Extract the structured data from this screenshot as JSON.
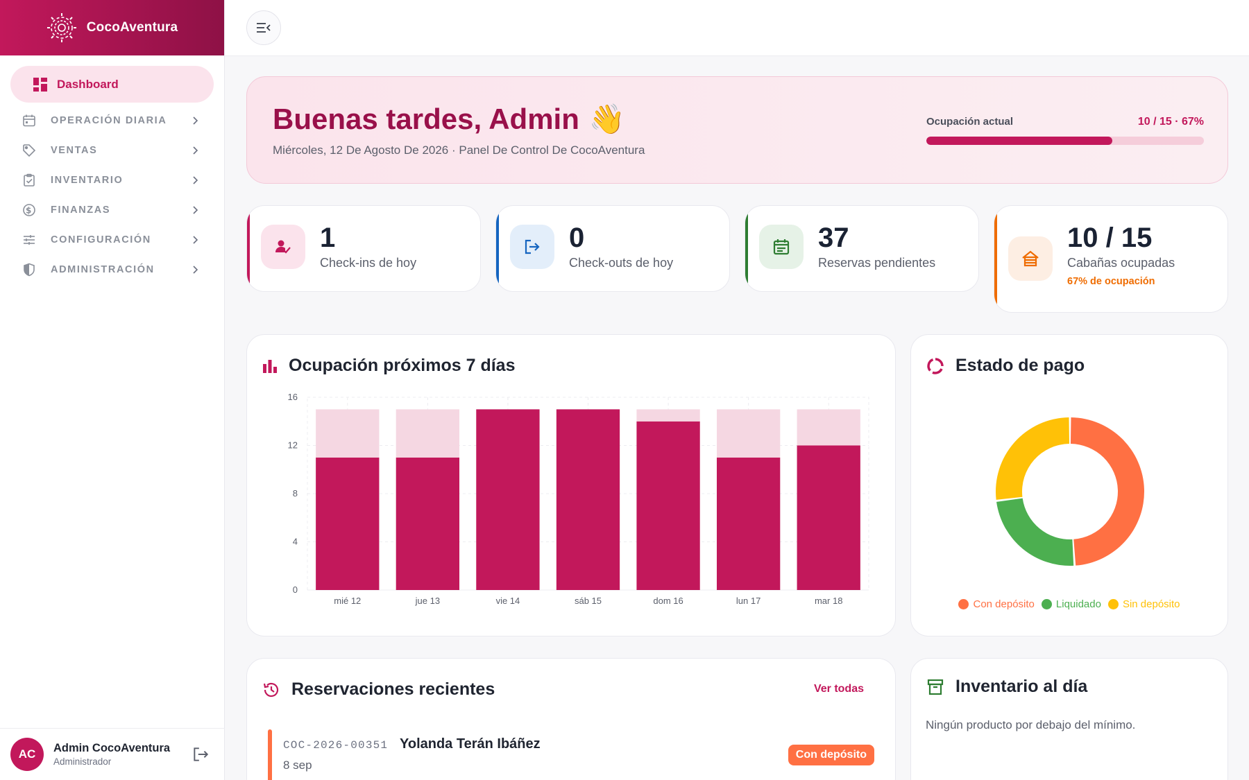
{
  "brand": {
    "name": "CocoAventura"
  },
  "sidebar": {
    "active": {
      "label": "Dashboard",
      "icon": "dashboard-icon"
    },
    "items": [
      {
        "label": "OPERACIÓN DIARIA",
        "icon": "calendar-icon"
      },
      {
        "label": "VENTAS",
        "icon": "tag-icon"
      },
      {
        "label": "INVENTARIO",
        "icon": "clipboard-check-icon"
      },
      {
        "label": "FINANZAS",
        "icon": "dollar-circle-icon"
      },
      {
        "label": "CONFIGURACIÓN",
        "icon": "sliders-icon"
      },
      {
        "label": "ADMINISTRACIÓN",
        "icon": "shield-icon"
      }
    ],
    "user": {
      "initials": "AC",
      "name": "Admin CocoAventura",
      "role": "Administrador"
    }
  },
  "hero": {
    "greeting": "Buenas tardes, Admin",
    "emoji": "👋",
    "subtitle": "Miércoles, 12 De Agosto De 2026 · Panel De Control De CocoAventura",
    "occupancy_label": "Ocupación actual",
    "occupancy_value": "10 / 15 · 67%",
    "occupancy_fraction": 0.67
  },
  "stats": [
    {
      "value": "1",
      "caption": "Check-ins de hoy",
      "color": "#c2185b",
      "bg": "#fbe3ec",
      "icon": "user-check-icon"
    },
    {
      "value": "0",
      "caption": "Check-outs de hoy",
      "color": "#1565c0",
      "bg": "#e3eefa",
      "icon": "logout-arrow-icon"
    },
    {
      "value": "37",
      "caption": "Reservas pendientes",
      "color": "#2e7d32",
      "bg": "#e6f2e7",
      "icon": "calendar-list-icon"
    },
    {
      "value": "10 / 15",
      "caption": "Cabañas ocupadas",
      "extra": "67% de ocupación",
      "color": "#ef6c00",
      "bg": "#fdeee3",
      "icon": "cabin-icon"
    }
  ],
  "occupancy_panel": {
    "title": "Ocupación próximos 7 días"
  },
  "payment_panel": {
    "title": "Estado de pago"
  },
  "chart_data": [
    {
      "type": "bar",
      "title": "Ocupación próximos 7 días",
      "categories": [
        "mié 12",
        "jue 13",
        "vie 14",
        "sáb 15",
        "dom 16",
        "lun 17",
        "mar 18"
      ],
      "series": [
        {
          "values": [
            11,
            11,
            15,
            15,
            14,
            11,
            12
          ],
          "color": "#c2185b"
        },
        {
          "values": [
            4,
            4,
            0,
            0,
            1,
            4,
            3
          ],
          "color": "#f5d7e2"
        }
      ],
      "stacked": true,
      "ylim": [
        0,
        16
      ],
      "yticks": [
        0,
        4,
        8,
        12,
        16
      ],
      "grid": true
    },
    {
      "type": "pie",
      "title": "Estado de pago",
      "donut": true,
      "labels": [
        "Con depósito",
        "Liquidado",
        "Sin depósito"
      ],
      "values": [
        49,
        24,
        27
      ],
      "colors": [
        "#ff7043",
        "#4caf50",
        "#ffc107"
      ],
      "legend": "bottom"
    }
  ],
  "recent": {
    "title": "Reservaciones recientes",
    "see_all": "Ver todas",
    "rows": [
      {
        "code": "COC-2026-00351",
        "name": "Yolanda Terán Ibáñez",
        "date": "8 sep",
        "status": "Con depósito"
      }
    ]
  },
  "inventory": {
    "title": "Inventario al día",
    "message": "Ningún producto por debajo del mínimo."
  }
}
